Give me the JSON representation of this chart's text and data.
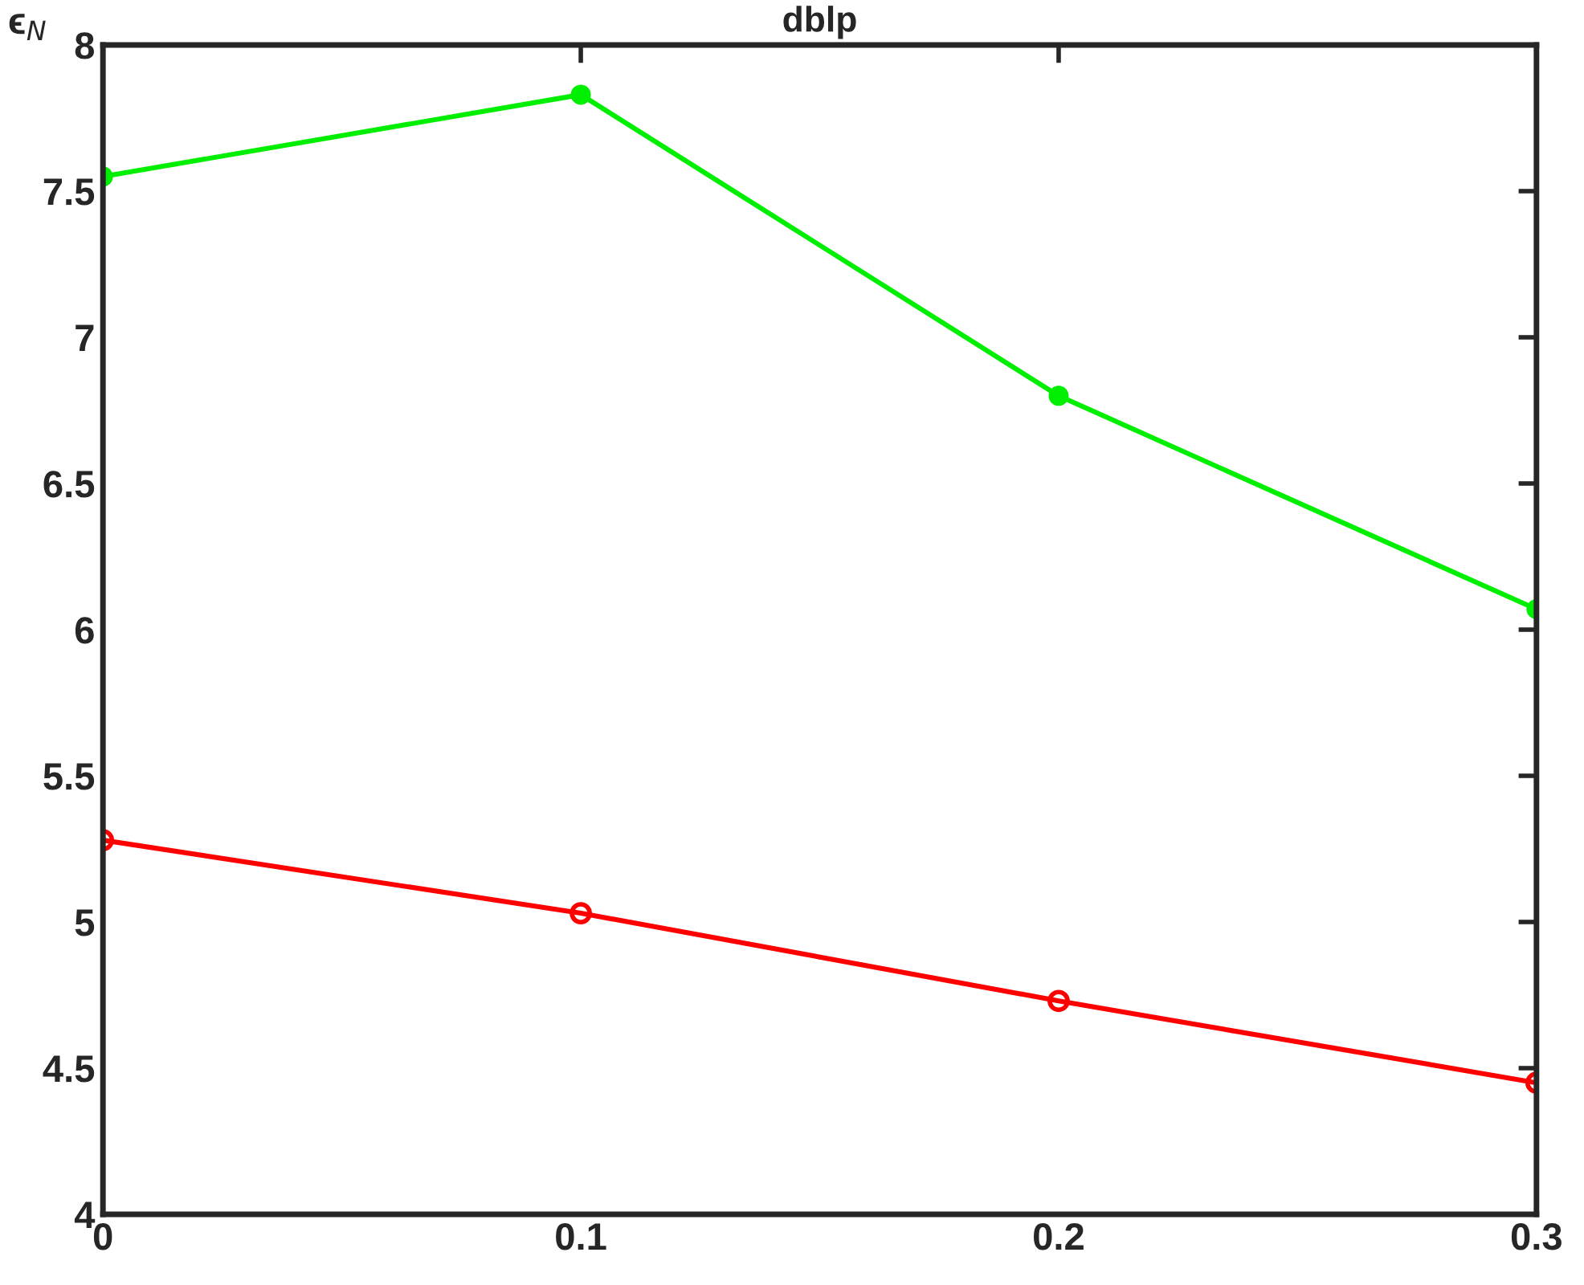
{
  "chart_data": {
    "type": "line",
    "title": "dblp",
    "ylabel": "ϵ$_{N}$",
    "x": [
      0,
      0.1,
      0.2,
      0.3
    ],
    "series": [
      {
        "color": "#00ee00",
        "marker": "circle",
        "values": [
          7.55,
          7.83,
          6.8,
          6.07
        ]
      },
      {
        "color": "#ff0000",
        "marker": "circle",
        "values": [
          5.28,
          5.03,
          4.73,
          4.45
        ]
      }
    ],
    "xlim": [
      0,
      0.3
    ],
    "xticks": [
      0,
      0.1,
      0.2,
      0.3
    ],
    "ylim": [
      4,
      8
    ],
    "yticks": [
      4,
      4.5,
      5,
      5.5,
      6,
      6.5,
      7,
      7.5,
      8
    ],
    "grid": false,
    "legend": false,
    "line_style": "solid"
  }
}
